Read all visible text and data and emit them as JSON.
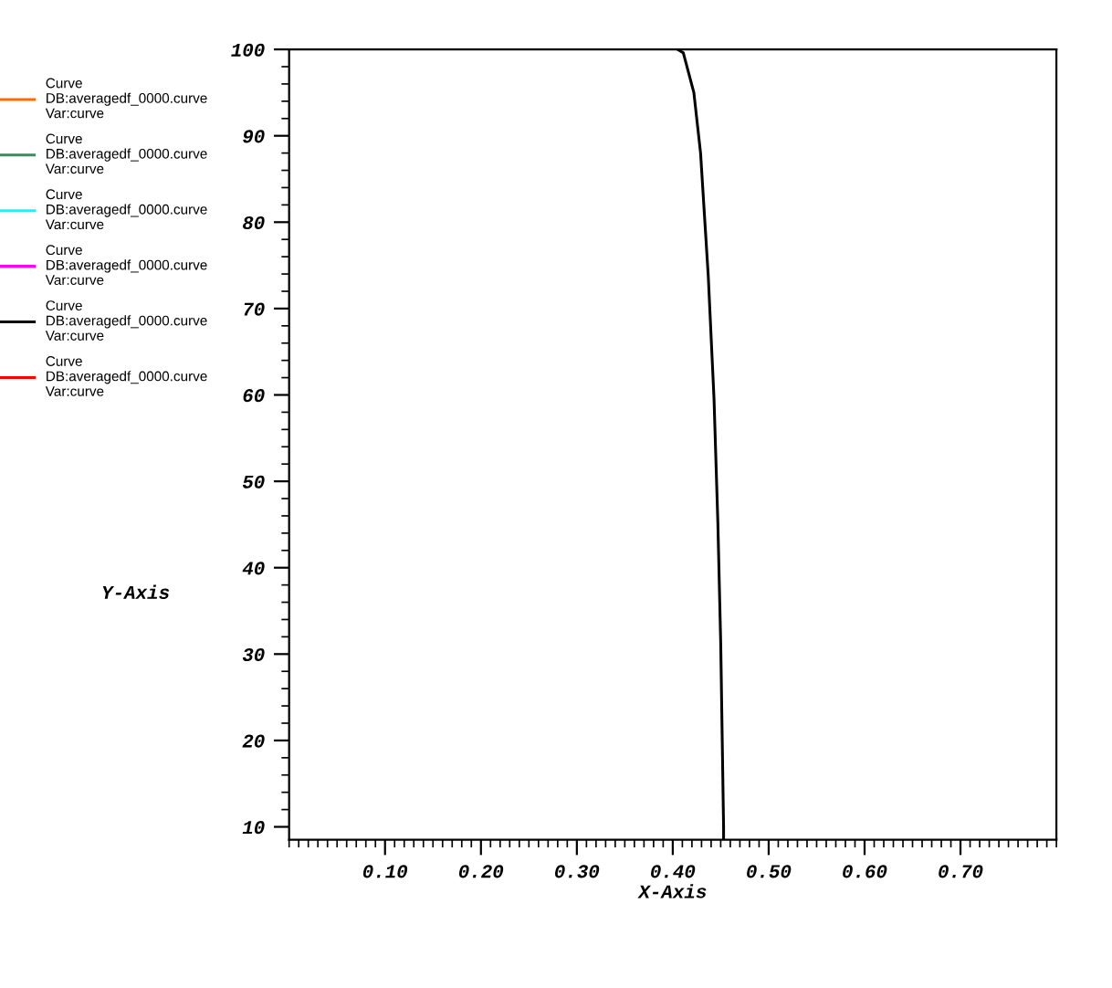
{
  "chart_data": {
    "type": "line",
    "xlabel": "X-Axis",
    "ylabel": "Y-Axis",
    "xlim": [
      0,
      0.8
    ],
    "ylim": [
      8.5,
      100
    ],
    "xticks": [
      {
        "value": 0.1,
        "label": "0.10"
      },
      {
        "value": 0.2,
        "label": "0.20"
      },
      {
        "value": 0.3,
        "label": "0.30"
      },
      {
        "value": 0.4,
        "label": "0.40"
      },
      {
        "value": 0.5,
        "label": "0.50"
      },
      {
        "value": 0.6,
        "label": "0.60"
      },
      {
        "value": 0.7,
        "label": "0.70"
      }
    ],
    "yticks": [
      10,
      20,
      30,
      40,
      50,
      60,
      70,
      80,
      90,
      100
    ],
    "grid": false,
    "legend": "left",
    "marker": "none",
    "line_style": "solid",
    "series": [
      {
        "name": "Curve\nDB:averagedf_0000.curve\nVar:curve",
        "color": "#ff6a00"
      },
      {
        "name": "Curve\nDB:averagedf_0000.curve\nVar:curve",
        "color": "#3f8a5f"
      },
      {
        "name": "Curve\nDB:averagedf_0000.curve\nVar:curve",
        "color": "#00ffff"
      },
      {
        "name": "Curve\nDB:averagedf_0000.curve\nVar:curve",
        "color": "#ff00ff"
      },
      {
        "name": "Curve\nDB:averagedf_0000.curve\nVar:curve",
        "color": "#000000",
        "x": [
          0.405,
          0.411,
          0.422,
          0.429,
          0.437,
          0.443,
          0.447,
          0.45,
          0.453,
          0.453
        ],
        "values": [
          100,
          99.6,
          95,
          88,
          73.8,
          59.6,
          45.3,
          31.3,
          10,
          8.5
        ]
      },
      {
        "name": "Curve\nDB:averagedf_0000.curve\nVar:curve",
        "color": "#ff0000"
      }
    ]
  }
}
